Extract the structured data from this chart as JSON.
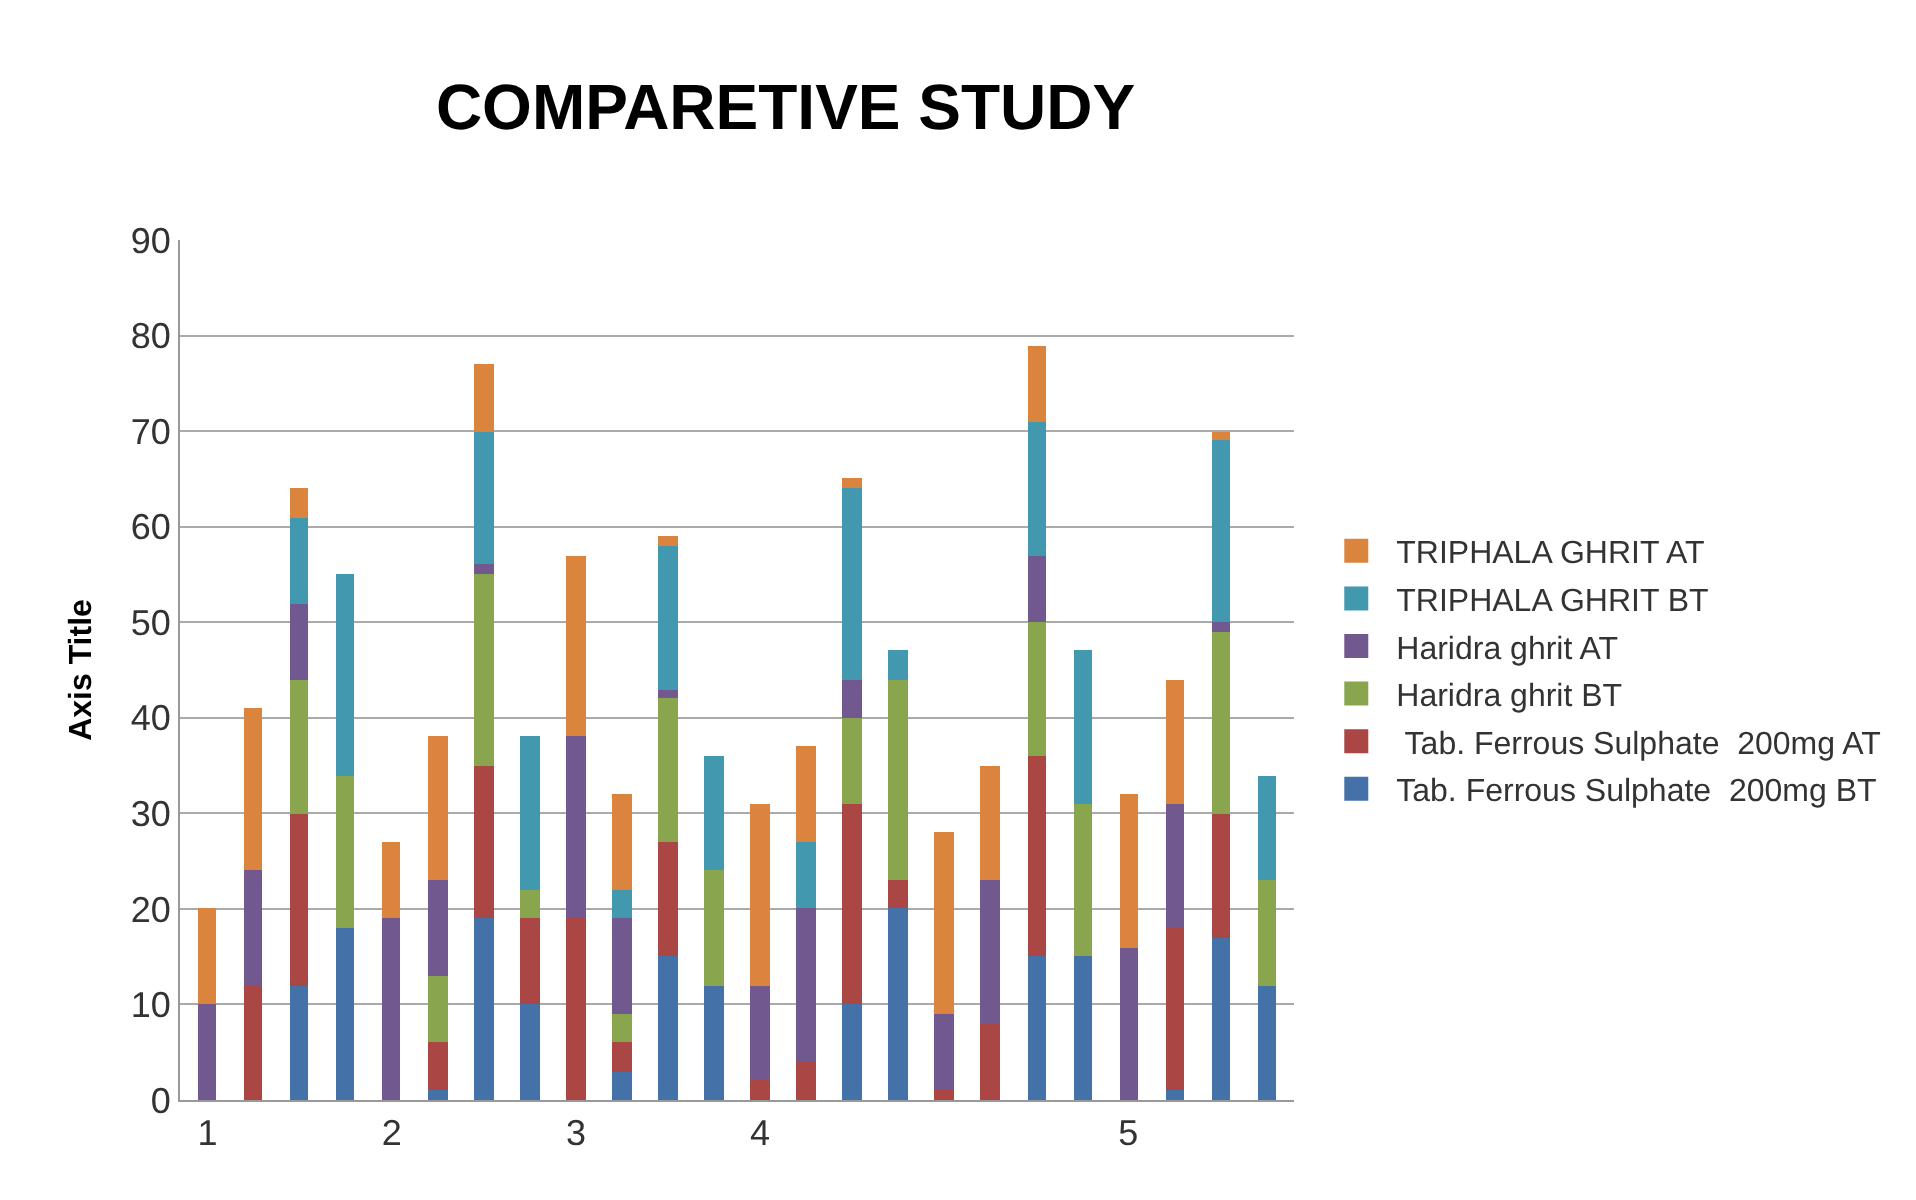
{
  "chart_data": {
    "type": "bar",
    "stacked": true,
    "title": "COMPARETIVE STUDY",
    "ylabel": "Axis Title",
    "categories": [
      "1",
      null,
      null,
      null,
      "2",
      null,
      null,
      null,
      "3",
      null,
      null,
      null,
      "4",
      null,
      null,
      null,
      null,
      null,
      null,
      null,
      "5",
      null,
      null,
      null
    ],
    "series": [
      {
        "name": "Tab. Ferrous Sulphate  200mg BT",
        "color": "#4472a8",
        "values": [
          0,
          0,
          12,
          18,
          0,
          1,
          19,
          10,
          0,
          3,
          15,
          12,
          0,
          0,
          10,
          20,
          0,
          0,
          15,
          15,
          0,
          1,
          17,
          12
        ]
      },
      {
        "name": " Tab. Ferrous Sulphate  200mg AT",
        "color": "#aa4643",
        "values": [
          0,
          12,
          18,
          0,
          0,
          5,
          16,
          9,
          19,
          3,
          12,
          0,
          2,
          4,
          21,
          3,
          1,
          8,
          21,
          0,
          0,
          17,
          13,
          0
        ]
      },
      {
        "name": "Haridra ghrit BT",
        "color": "#89a54e",
        "values": [
          0,
          0,
          14,
          16,
          0,
          7,
          20,
          3,
          0,
          3,
          15,
          12,
          0,
          0,
          9,
          21,
          0,
          0,
          14,
          16,
          0,
          0,
          19,
          11
        ]
      },
      {
        "name": "Haridra ghrit AT",
        "color": "#71588f",
        "values": [
          10,
          12,
          8,
          0,
          19,
          10,
          1,
          0,
          19,
          10,
          1,
          0,
          10,
          16,
          4,
          0,
          8,
          15,
          7,
          0,
          16,
          13,
          1,
          0
        ]
      },
      {
        "name": "TRIPHALA GHRIT BT",
        "color": "#4198af",
        "values": [
          0,
          0,
          9,
          21,
          0,
          0,
          14,
          16,
          0,
          3,
          15,
          12,
          0,
          7,
          20,
          3,
          0,
          0,
          14,
          16,
          0,
          0,
          19,
          11
        ]
      },
      {
        "name": "TRIPHALA GHRIT AT",
        "color": "#db843d",
        "values": [
          10,
          17,
          3,
          0,
          8,
          15,
          7,
          0,
          19,
          10,
          1,
          0,
          19,
          10,
          1,
          0,
          19,
          12,
          8,
          0,
          16,
          13,
          1,
          0
        ]
      }
    ],
    "ylim": [
      0,
      90
    ],
    "yticks": [
      0,
      10,
      20,
      30,
      40,
      50,
      60,
      70,
      80,
      90
    ],
    "grid": "y",
    "legend": "right"
  }
}
